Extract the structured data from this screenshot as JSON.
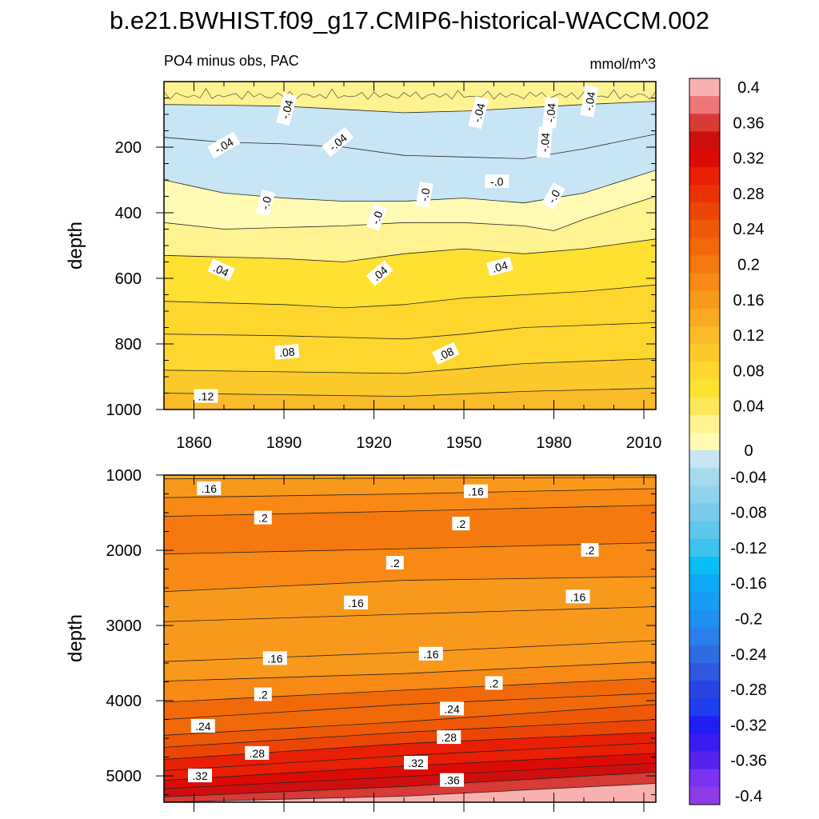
{
  "title": "b.e21.BWHIST.f09_g17.CMIP6-historical-WACCM.002",
  "colors": {
    "levels": [
      -0.4,
      -0.38,
      -0.36,
      -0.34,
      -0.32,
      -0.3,
      -0.28,
      -0.26,
      -0.24,
      -0.22,
      -0.2,
      -0.18,
      -0.16,
      -0.14,
      -0.12,
      -0.1,
      -0.08,
      -0.06,
      -0.04,
      -0.02,
      0,
      0.02,
      0.04,
      0.06,
      0.08,
      0.1,
      0.12,
      0.14,
      0.16,
      0.18,
      0.2,
      0.22,
      0.24,
      0.26,
      0.28,
      0.3,
      0.32,
      0.34,
      0.36,
      0.38,
      0.4
    ],
    "fills": [
      "#8d3ce6",
      "#7a33f2",
      "#5522ee",
      "#3a1cf0",
      "#1f1ef5",
      "#1f3ef0",
      "#2a44e4",
      "#3058de",
      "#2f6ce0",
      "#2a80ea",
      "#1e90f2",
      "#169df4",
      "#0ea9f6",
      "#09bdf5",
      "#3cc3f0",
      "#5ec7ee",
      "#7acbeb",
      "#8fd2ec",
      "#a7d9ee",
      "#c7e5f4",
      "#fffab4",
      "#fff290",
      "#ffe75a",
      "#ffe131",
      "#fed72e",
      "#fcc92b",
      "#fbba28",
      "#faa922",
      "#f9991c",
      "#f78914",
      "#f5790e",
      "#f16909",
      "#ee5807",
      "#ed4505",
      "#ec3104",
      "#e81e05",
      "#dd0b06",
      "#cf0e10",
      "#d83a35",
      "#ee7676",
      "#fbb0b0"
    ]
  },
  "chart_data": [
    {
      "type": "contour",
      "subtitle_left": "PO4 minus obs, PAC",
      "subtitle_right": "mmol/m^3",
      "ylabel": "depth",
      "xlim": [
        1850,
        2014
      ],
      "ylim": [
        1000,
        0
      ],
      "xticks": [
        1860,
        1890,
        1920,
        1950,
        1980,
        2010
      ],
      "xtick_labels": [
        "1860",
        "1890",
        "1920",
        "1950",
        "1980",
        "2010"
      ],
      "yticks": [
        200,
        400,
        600,
        800,
        1000
      ],
      "ytick_labels": [
        "200",
        "400",
        "600",
        "800",
        "1000"
      ],
      "contour_levels": [
        -0.1,
        -0.08,
        -0.06,
        -0.04,
        -0.02,
        0,
        0.02,
        0.04,
        0.06,
        0.08,
        0.1,
        0.12
      ],
      "contours": [
        {
          "level": -0.04,
          "points": [
            [
              1850,
              70
            ],
            [
              1870,
              72
            ],
            [
              1890,
              75
            ],
            [
              1910,
              85
            ],
            [
              1930,
              95
            ],
            [
              1950,
              90
            ],
            [
              1970,
              80
            ],
            [
              1990,
              70
            ],
            [
              2014,
              60
            ]
          ]
        },
        {
          "level": -0.02,
          "points": [
            [
              1850,
              170
            ],
            [
              1870,
              185
            ],
            [
              1890,
              190
            ],
            [
              1910,
              200
            ],
            [
              1930,
              225
            ],
            [
              1950,
              230
            ],
            [
              1970,
              235
            ],
            [
              1990,
              205
            ],
            [
              2014,
              160
            ]
          ]
        },
        {
          "level": 0.0,
          "points": [
            [
              1850,
              300
            ],
            [
              1870,
              340
            ],
            [
              1890,
              355
            ],
            [
              1910,
              365
            ],
            [
              1930,
              365
            ],
            [
              1950,
              355
            ],
            [
              1970,
              370
            ],
            [
              1990,
              340
            ],
            [
              2014,
              270
            ]
          ]
        },
        {
          "level": 0.02,
          "points": [
            [
              1850,
              430
            ],
            [
              1870,
              450
            ],
            [
              1890,
              445
            ],
            [
              1910,
              440
            ],
            [
              1930,
              430
            ],
            [
              1950,
              430
            ],
            [
              1970,
              440
            ],
            [
              1980,
              455
            ],
            [
              1990,
              420
            ],
            [
              2014,
              350
            ]
          ]
        },
        {
          "level": 0.04,
          "points": [
            [
              1850,
              530
            ],
            [
              1870,
              535
            ],
            [
              1890,
              540
            ],
            [
              1910,
              550
            ],
            [
              1930,
              525
            ],
            [
              1950,
              510
            ],
            [
              1970,
              525
            ],
            [
              1990,
              510
            ],
            [
              2014,
              480
            ]
          ]
        },
        {
          "level": 0.06,
          "points": [
            [
              1850,
              670
            ],
            [
              1870,
              675
            ],
            [
              1890,
              680
            ],
            [
              1910,
              690
            ],
            [
              1930,
              680
            ],
            [
              1950,
              660
            ],
            [
              1970,
              650
            ],
            [
              1990,
              640
            ],
            [
              2014,
              620
            ]
          ]
        },
        {
          "level": 0.08,
          "points": [
            [
              1850,
              770
            ],
            [
              1890,
              775
            ],
            [
              1930,
              785
            ],
            [
              1950,
              770
            ],
            [
              1970,
              750
            ],
            [
              2014,
              735
            ]
          ]
        },
        {
          "level": 0.1,
          "points": [
            [
              1850,
              880
            ],
            [
              1890,
              885
            ],
            [
              1930,
              890
            ],
            [
              1950,
              875
            ],
            [
              1970,
              860
            ],
            [
              2014,
              845
            ]
          ]
        },
        {
          "level": 0.12,
          "points": [
            [
              1850,
              950
            ],
            [
              1890,
              955
            ],
            [
              1930,
              960
            ],
            [
              1970,
              945
            ],
            [
              2014,
              935
            ]
          ]
        }
      ],
      "labels": [
        {
          "text": "-.04",
          "x": 1891,
          "y": 85,
          "rot": -75
        },
        {
          "text": "-.04",
          "x": 1870,
          "y": 195,
          "rot": -30
        },
        {
          "text": "-.04",
          "x": 1908,
          "y": 185,
          "rot": -40
        },
        {
          "text": "-.04",
          "x": 1955,
          "y": 95,
          "rot": -75
        },
        {
          "text": "-.04",
          "x": 1979,
          "y": 95,
          "rot": -85
        },
        {
          "text": "-.04",
          "x": 1992,
          "y": 60,
          "rot": -80
        },
        {
          "text": "-.04",
          "x": 1977,
          "y": 185,
          "rot": -85
        },
        {
          "text": "-.0",
          "x": 1884,
          "y": 370,
          "rot": -75
        },
        {
          "text": "-.0",
          "x": 1937,
          "y": 345,
          "rot": -80
        },
        {
          "text": "-.0",
          "x": 1961,
          "y": 305,
          "rot": 0
        },
        {
          "text": "-.0",
          "x": 1980,
          "y": 350,
          "rot": -60
        },
        {
          "text": "-.0",
          "x": 1921,
          "y": 415,
          "rot": -70
        },
        {
          "text": ".04",
          "x": 1869,
          "y": 575,
          "rot": 25
        },
        {
          "text": ".04",
          "x": 1922,
          "y": 585,
          "rot": -40
        },
        {
          "text": ".04",
          "x": 1962,
          "y": 565,
          "rot": -15
        },
        {
          "text": ".08",
          "x": 1891,
          "y": 825,
          "rot": -5
        },
        {
          "text": ".08",
          "x": 1944,
          "y": 830,
          "rot": -25
        },
        {
          "text": ".12",
          "x": 1864,
          "y": 960,
          "rot": 0
        }
      ]
    },
    {
      "type": "contour",
      "ylabel": "depth",
      "xlim": [
        1850,
        2014
      ],
      "ylim": [
        5350,
        1000
      ],
      "yticks": [
        1000,
        2000,
        3000,
        4000,
        5000
      ],
      "ytick_labels": [
        "1000",
        "2000",
        "3000",
        "4000",
        "5000"
      ],
      "contour_levels": [
        0.16,
        0.18,
        0.2,
        0.22,
        0.24,
        0.26,
        0.28,
        0.3,
        0.32,
        0.34,
        0.36,
        0.38
      ],
      "contours": [
        {
          "level": 0.16,
          "points": [
            [
              1850,
              1050
            ],
            [
              1930,
              1040
            ],
            [
              2014,
              1030
            ]
          ]
        },
        {
          "level": 0.18,
          "points": [
            [
              1850,
              1300
            ],
            [
              1930,
              1250
            ],
            [
              2014,
              1180
            ]
          ]
        },
        {
          "level": 0.2,
          "points": [
            [
              1850,
              1550
            ],
            [
              1930,
              1480
            ],
            [
              2014,
              1400
            ]
          ]
        },
        {
          "level": 0.2,
          "points": [
            [
              1850,
              2050
            ],
            [
              1930,
              1980
            ],
            [
              2014,
              1900
            ]
          ]
        },
        {
          "level": 0.18,
          "points": [
            [
              1850,
              2550
            ],
            [
              1930,
              2400
            ],
            [
              2014,
              2350
            ]
          ]
        },
        {
          "level": 0.16,
          "points": [
            [
              1850,
              2950
            ],
            [
              1930,
              2850
            ],
            [
              2014,
              2750
            ]
          ]
        },
        {
          "level": 0.16,
          "points": [
            [
              1850,
              3480
            ],
            [
              1930,
              3360
            ],
            [
              2014,
              3200
            ]
          ]
        },
        {
          "level": 0.18,
          "points": [
            [
              1850,
              3740
            ],
            [
              1930,
              3640
            ],
            [
              2014,
              3480
            ]
          ]
        },
        {
          "level": 0.2,
          "points": [
            [
              1850,
              4020
            ],
            [
              1930,
              3860
            ],
            [
              2014,
              3700
            ]
          ]
        },
        {
          "level": 0.22,
          "points": [
            [
              1850,
              4250
            ],
            [
              1930,
              4050
            ],
            [
              2014,
              3900
            ]
          ]
        },
        {
          "level": 0.24,
          "points": [
            [
              1850,
              4460
            ],
            [
              1930,
              4280
            ],
            [
              2014,
              4050
            ]
          ]
        },
        {
          "level": 0.26,
          "points": [
            [
              1850,
              4620
            ],
            [
              1930,
              4420
            ],
            [
              2014,
              4250
            ]
          ]
        },
        {
          "level": 0.28,
          "points": [
            [
              1850,
              4780
            ],
            [
              1930,
              4570
            ],
            [
              2014,
              4420
            ]
          ]
        },
        {
          "level": 0.3,
          "points": [
            [
              1850,
              4930
            ],
            [
              1930,
              4730
            ],
            [
              2014,
              4560
            ]
          ]
        },
        {
          "level": 0.32,
          "points": [
            [
              1850,
              5060
            ],
            [
              1930,
              4870
            ],
            [
              2014,
              4700
            ]
          ]
        },
        {
          "level": 0.34,
          "points": [
            [
              1850,
              5170
            ],
            [
              1930,
              5010
            ],
            [
              2014,
              4830
            ]
          ]
        },
        {
          "level": 0.36,
          "points": [
            [
              1850,
              5280
            ],
            [
              1930,
              5140
            ],
            [
              2014,
              4950
            ]
          ]
        },
        {
          "level": 0.38,
          "points": [
            [
              1850,
              5350
            ],
            [
              1930,
              5270
            ],
            [
              2014,
              5100
            ]
          ]
        }
      ],
      "labels": [
        {
          "text": ".16",
          "x": 1865,
          "y": 1180,
          "rot": 0
        },
        {
          "text": ".16",
          "x": 1954,
          "y": 1220,
          "rot": 0
        },
        {
          "text": ".2",
          "x": 1883,
          "y": 1570,
          "rot": 0
        },
        {
          "text": ".2",
          "x": 1949,
          "y": 1650,
          "rot": 0
        },
        {
          "text": ".2",
          "x": 1927,
          "y": 2170,
          "rot": 0
        },
        {
          "text": ".2",
          "x": 1992,
          "y": 2000,
          "rot": 0
        },
        {
          "text": ".16",
          "x": 1914,
          "y": 2700,
          "rot": 0
        },
        {
          "text": ".16",
          "x": 1988,
          "y": 2620,
          "rot": 0
        },
        {
          "text": ".16",
          "x": 1887,
          "y": 3440,
          "rot": 0
        },
        {
          "text": ".16",
          "x": 1939,
          "y": 3380,
          "rot": 0
        },
        {
          "text": ".2",
          "x": 1883,
          "y": 3920,
          "rot": 0
        },
        {
          "text": ".2",
          "x": 1960,
          "y": 3770,
          "rot": 0
        },
        {
          "text": ".24",
          "x": 1863,
          "y": 4340,
          "rot": 0
        },
        {
          "text": ".24",
          "x": 1946,
          "y": 4110,
          "rot": 0
        },
        {
          "text": ".28",
          "x": 1881,
          "y": 4700,
          "rot": 0
        },
        {
          "text": ".28",
          "x": 1945,
          "y": 4490,
          "rot": 0
        },
        {
          "text": ".32",
          "x": 1862,
          "y": 5000,
          "rot": 0
        },
        {
          "text": ".32",
          "x": 1934,
          "y": 4830,
          "rot": 0
        },
        {
          "text": ".36",
          "x": 1946,
          "y": 5060,
          "rot": 0
        }
      ]
    }
  ],
  "colorbar": {
    "labels": [
      "0.4",
      "0.36",
      "0.32",
      "0.28",
      "0.24",
      "0.2",
      "0.16",
      "0.12",
      "0.08",
      "0.04",
      "0",
      "-0.04",
      "-0.08",
      "-0.12",
      "-0.16",
      "-0.2",
      "-0.24",
      "-0.28",
      "-0.32",
      "-0.36",
      "-0.4"
    ],
    "label_values": [
      0.4,
      0.36,
      0.32,
      0.28,
      0.24,
      0.2,
      0.16,
      0.12,
      0.08,
      0.04,
      0,
      -0.04,
      -0.08,
      -0.12,
      -0.16,
      -0.2,
      -0.24,
      -0.28,
      -0.32,
      -0.36,
      -0.4
    ]
  }
}
